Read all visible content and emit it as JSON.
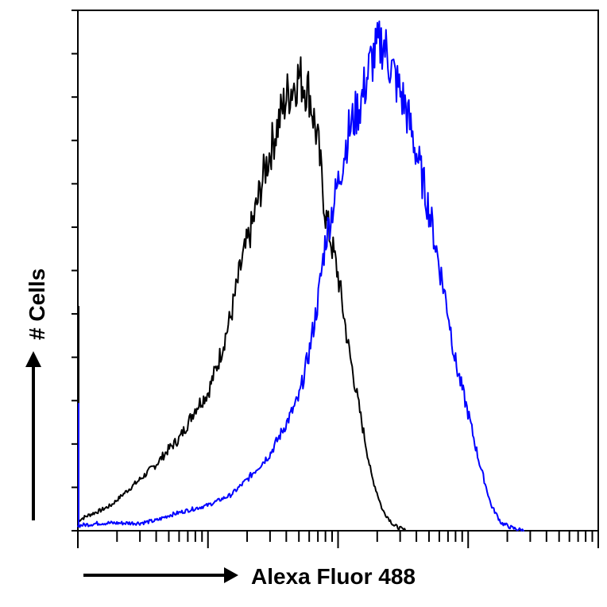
{
  "chart_data": {
    "type": "line",
    "title": "",
    "xlabel": "Alexa Fluor 488",
    "ylabel": "# Cells",
    "xscale": "log",
    "xlim": [
      1,
      10000
    ],
    "ylim": [
      0,
      100
    ],
    "grid": false,
    "legend": "none",
    "series": [
      {
        "color": "#000000",
        "x": [
          1,
          1.2,
          1.5,
          1.8,
          2.2,
          2.7,
          3.3,
          4,
          5,
          6,
          7,
          8,
          10,
          12,
          15,
          18,
          22,
          27,
          33,
          40,
          50,
          60,
          70,
          80,
          100,
          120,
          150,
          180,
          220,
          270,
          330
        ],
        "y": [
          2,
          3,
          4,
          5,
          7,
          9,
          11,
          13,
          16,
          18,
          21,
          24,
          27,
          33,
          42,
          52,
          60,
          70,
          78,
          85,
          89,
          86,
          76,
          62,
          50,
          36,
          22,
          11,
          4,
          1,
          0
        ]
      },
      {
        "color": "#0000ff",
        "x": [
          1,
          1.5,
          2,
          3,
          4,
          5,
          7,
          10,
          15,
          20,
          30,
          40,
          50,
          60,
          70,
          80,
          100,
          120,
          150,
          180,
          220,
          270,
          330,
          400,
          500,
          600,
          700,
          800,
          1000,
          1200,
          1500,
          1800,
          2200,
          2700
        ],
        "y": [
          1,
          1.5,
          1.5,
          1.5,
          2,
          3,
          4,
          5,
          7,
          10,
          15,
          21,
          26,
          35,
          45,
          57,
          68,
          78,
          84,
          92,
          96,
          89,
          83,
          74,
          63,
          52,
          43,
          33,
          23,
          14,
          5,
          1.5,
          0.5,
          0
        ]
      }
    ]
  }
}
